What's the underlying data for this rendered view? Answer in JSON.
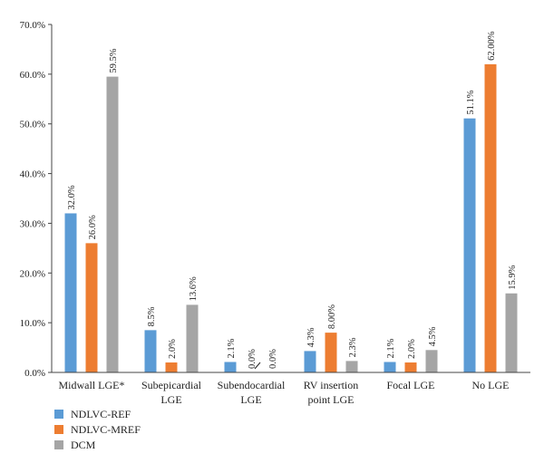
{
  "chart_data": {
    "type": "bar",
    "categories": [
      [
        "Midwall LGE*"
      ],
      [
        "Subepicardial",
        "LGE"
      ],
      [
        "Subendocardial",
        "LGE"
      ],
      [
        "RV insertion",
        "point LGE"
      ],
      [
        "Focal LGE"
      ],
      [
        "No LGE"
      ]
    ],
    "series": [
      {
        "name": "NDLVC-REF",
        "color": "#5b9bd5",
        "values": [
          32.0,
          8.5,
          2.1,
          4.3,
          2.1,
          51.1
        ],
        "labels": [
          "32.0%",
          "8.5%",
          "2.1%",
          "4.3%",
          "2.1%",
          "51.1%"
        ]
      },
      {
        "name": "NDLVC-MREF",
        "color": "#ed7d31",
        "values": [
          26.0,
          2.0,
          0.0,
          8.0,
          2.0,
          62.0
        ],
        "labels": [
          "26.0%",
          "2.0%",
          "0.0%",
          "8.00%",
          "2.0%",
          "62.00%"
        ]
      },
      {
        "name": "DCM",
        "color": "#a5a5a5",
        "values": [
          59.5,
          13.6,
          0.0,
          2.3,
          4.5,
          15.9
        ],
        "labels": [
          "59.5%",
          "13.6%",
          "0.0%",
          "2.3%",
          "4.5%",
          "15.9%"
        ]
      }
    ],
    "yticks": [
      "0.0%",
      "10.0%",
      "20.0%",
      "30.0%",
      "40.0%",
      "50.0%",
      "60.0%",
      "70.0%"
    ],
    "ylim": [
      0,
      70
    ],
    "legend_position": "bottom-left",
    "title": "",
    "xlabel": "",
    "ylabel": ""
  }
}
